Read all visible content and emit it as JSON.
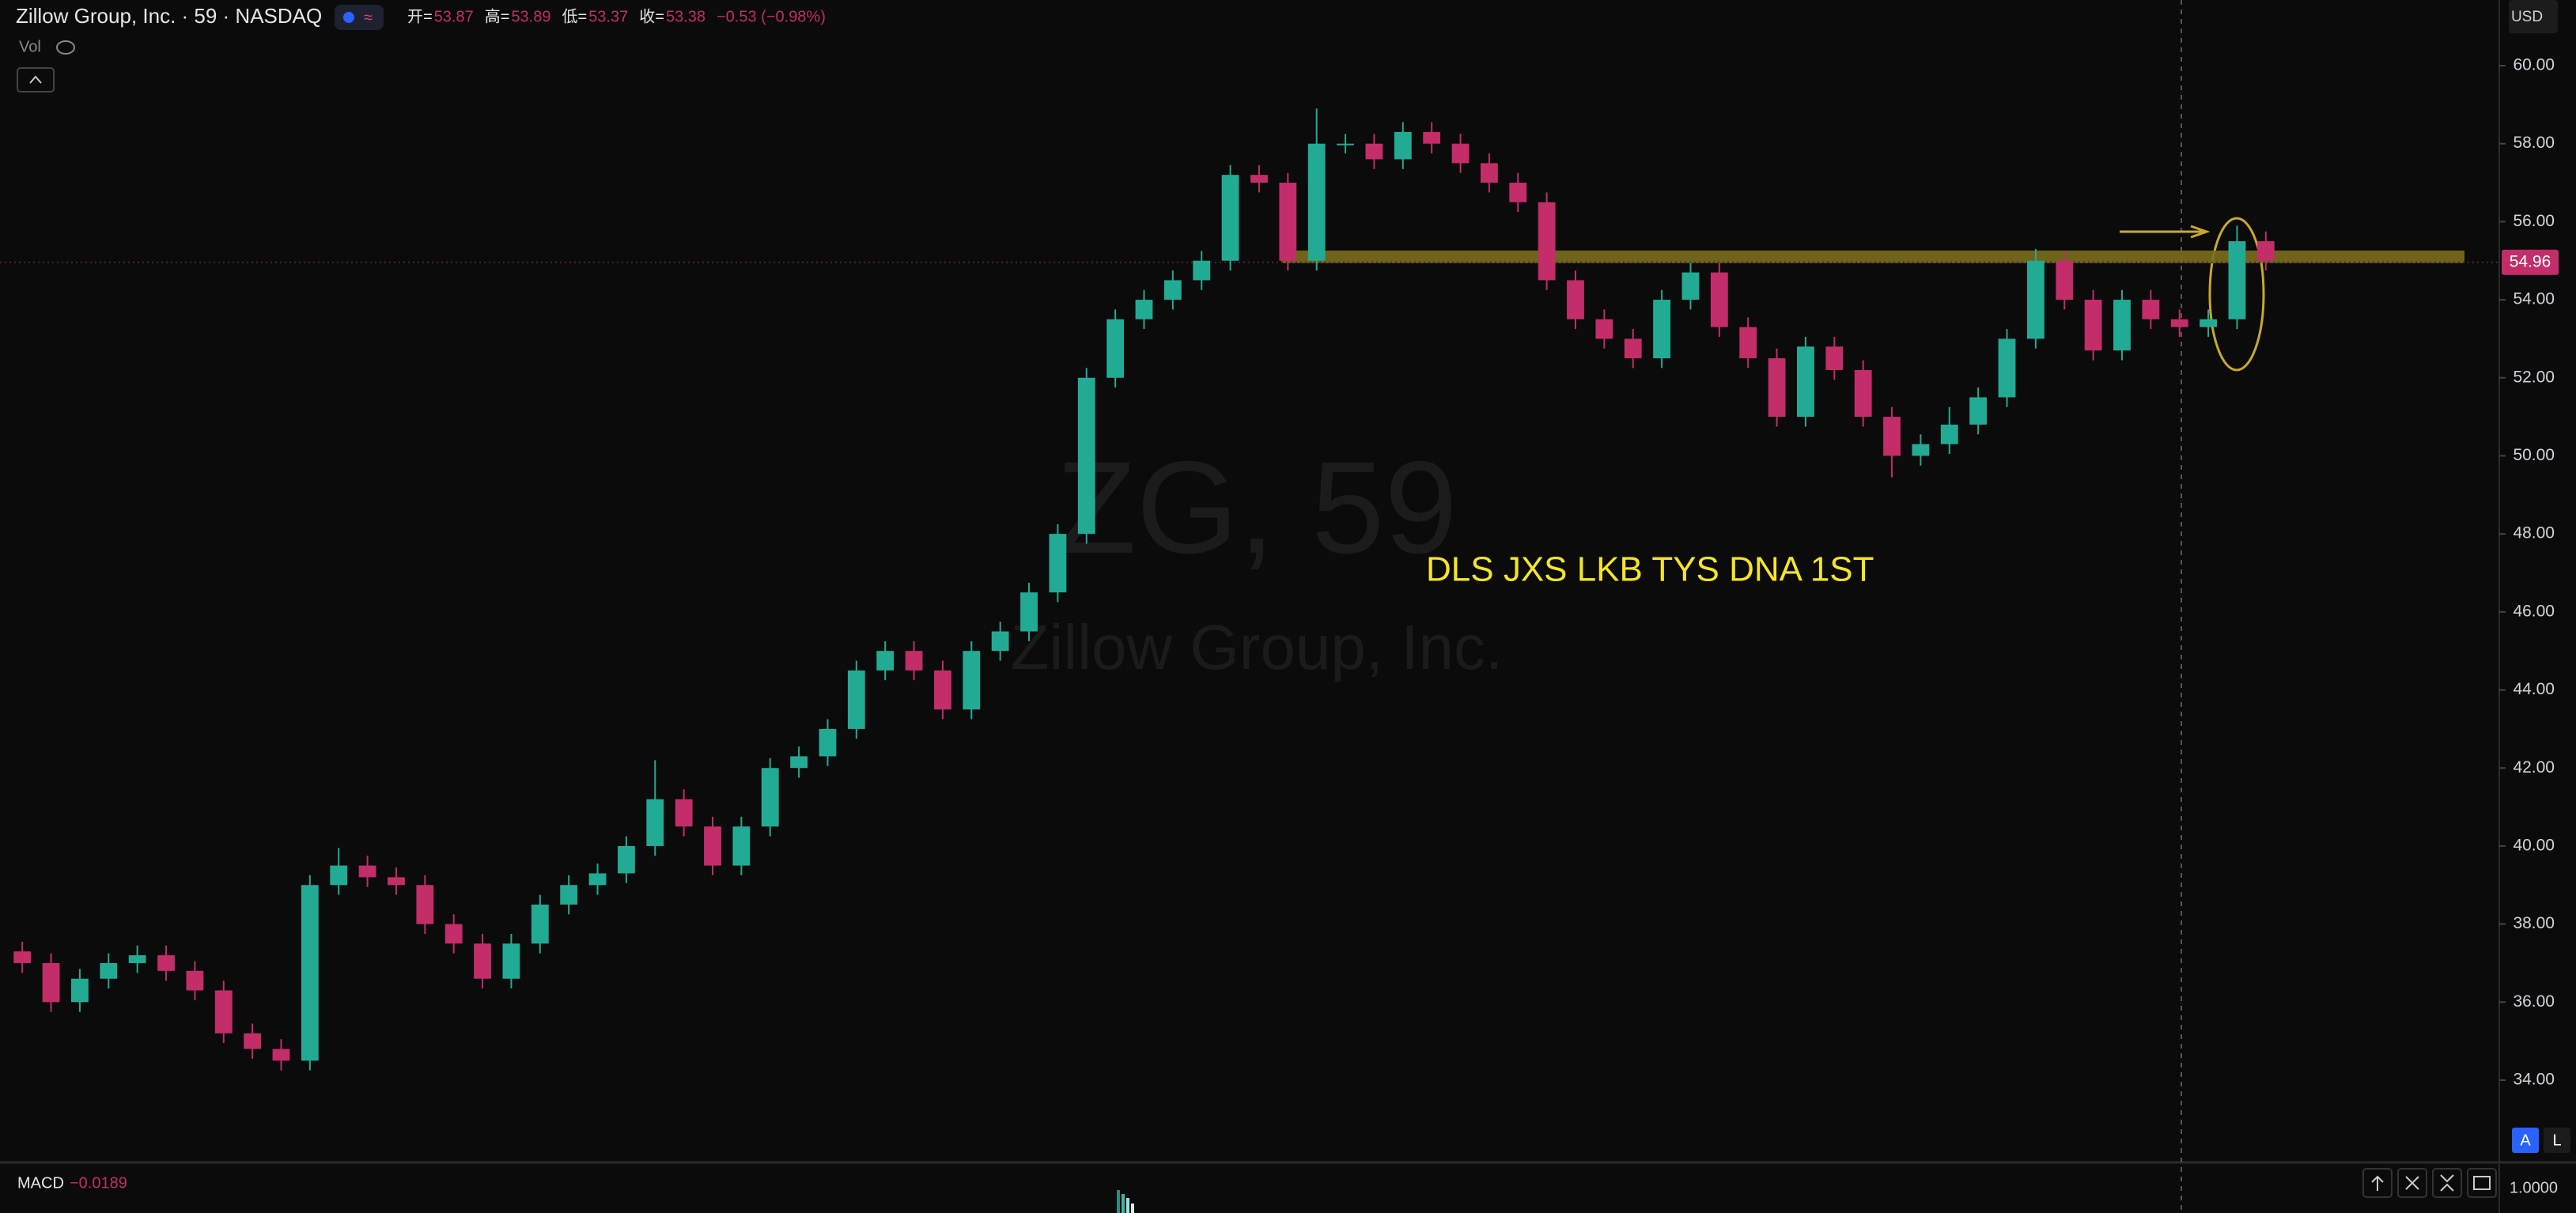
{
  "chart_data": {
    "type": "candlestick",
    "title": "Zillow Group, Inc. · 59 · NASDAQ",
    "quote": {
      "labels": [
        "开=",
        "高=",
        "低=",
        "收="
      ],
      "values": [
        53.87,
        53.89,
        53.37,
        53.38
      ],
      "change": {
        "value": -0.53,
        "label": "−0.53 (−0.98%)"
      }
    },
    "volume_label": "Vol",
    "watermark": {
      "symbol": "ZG, 59",
      "name": "Zillow Group, Inc."
    },
    "annotation": "DLS JXS LKB TYS DNA 1ST",
    "currency": "USD",
    "last_price": 54.96,
    "levels": [
      55.1
    ],
    "up_color": "#22ab94",
    "down_color": "#c22d6a",
    "level_color": "#7a6e1c",
    "ohlc": [
      [
        37.3,
        37.55,
        36.75,
        37.0
      ],
      [
        37.0,
        37.25,
        35.75,
        36.0
      ],
      [
        36.0,
        36.85,
        35.75,
        36.6
      ],
      [
        36.6,
        37.25,
        36.35,
        37.0
      ],
      [
        37.0,
        37.45,
        36.75,
        37.2
      ],
      [
        37.2,
        37.45,
        36.55,
        36.8
      ],
      [
        36.8,
        37.05,
        36.05,
        36.3
      ],
      [
        36.3,
        36.55,
        34.95,
        35.2
      ],
      [
        35.2,
        35.45,
        34.55,
        34.8
      ],
      [
        34.8,
        35.05,
        34.25,
        34.5
      ],
      [
        34.5,
        39.25,
        34.25,
        39.0
      ],
      [
        39.0,
        39.95,
        38.75,
        39.5
      ],
      [
        39.5,
        39.75,
        38.95,
        39.2
      ],
      [
        39.2,
        39.45,
        38.75,
        39.0
      ],
      [
        39.0,
        39.25,
        37.75,
        38.0
      ],
      [
        38.0,
        38.25,
        37.25,
        37.5
      ],
      [
        37.5,
        37.75,
        36.35,
        36.6
      ],
      [
        36.6,
        37.75,
        36.35,
        37.5
      ],
      [
        37.5,
        38.75,
        37.25,
        38.5
      ],
      [
        38.5,
        39.25,
        38.25,
        39.0
      ],
      [
        39.0,
        39.55,
        38.75,
        39.3
      ],
      [
        39.3,
        40.25,
        39.05,
        40.0
      ],
      [
        40.0,
        42.2,
        39.75,
        41.2
      ],
      [
        41.2,
        41.45,
        40.25,
        40.5
      ],
      [
        40.5,
        40.75,
        39.25,
        39.5
      ],
      [
        39.5,
        40.75,
        39.25,
        40.5
      ],
      [
        40.5,
        42.25,
        40.25,
        42.0
      ],
      [
        42.0,
        42.55,
        41.75,
        42.3
      ],
      [
        42.3,
        43.25,
        42.05,
        43.0
      ],
      [
        43.0,
        44.75,
        42.75,
        44.5
      ],
      [
        44.5,
        45.25,
        44.25,
        45.0
      ],
      [
        45.0,
        45.25,
        44.25,
        44.5
      ],
      [
        44.5,
        44.75,
        43.25,
        43.5
      ],
      [
        43.5,
        45.25,
        43.25,
        45.0
      ],
      [
        45.0,
        45.75,
        44.75,
        45.5
      ],
      [
        45.5,
        46.75,
        45.25,
        46.5
      ],
      [
        46.5,
        48.25,
        46.25,
        48.0
      ],
      [
        48.0,
        52.25,
        47.75,
        52.0
      ],
      [
        52.0,
        53.75,
        51.75,
        53.5
      ],
      [
        53.5,
        54.25,
        53.25,
        54.0
      ],
      [
        54.0,
        54.75,
        53.75,
        54.5
      ],
      [
        54.5,
        55.25,
        54.25,
        55.0
      ],
      [
        55.0,
        57.45,
        54.75,
        57.2
      ],
      [
        57.2,
        57.45,
        56.75,
        57.0
      ],
      [
        57.0,
        57.25,
        54.75,
        55.0
      ],
      [
        55.0,
        58.9,
        54.75,
        58.0
      ],
      [
        58.0,
        58.25,
        57.75,
        58.0
      ],
      [
        58.0,
        58.25,
        57.35,
        57.6
      ],
      [
        57.6,
        58.55,
        57.35,
        58.3
      ],
      [
        58.3,
        58.55,
        57.75,
        58.0
      ],
      [
        58.0,
        58.25,
        57.25,
        57.5
      ],
      [
        57.5,
        57.75,
        56.75,
        57.0
      ],
      [
        57.0,
        57.25,
        56.25,
        56.5
      ],
      [
        56.5,
        56.75,
        54.25,
        54.5
      ],
      [
        54.5,
        54.75,
        53.25,
        53.5
      ],
      [
        53.5,
        53.75,
        52.75,
        53.0
      ],
      [
        53.0,
        53.25,
        52.25,
        52.5
      ],
      [
        52.5,
        54.25,
        52.25,
        54.0
      ],
      [
        54.0,
        54.95,
        53.75,
        54.7
      ],
      [
        54.7,
        54.95,
        53.05,
        53.3
      ],
      [
        53.3,
        53.55,
        52.25,
        52.5
      ],
      [
        52.5,
        52.75,
        50.75,
        51.0
      ],
      [
        51.0,
        53.05,
        50.75,
        52.8
      ],
      [
        52.8,
        53.05,
        51.95,
        52.2
      ],
      [
        52.2,
        52.45,
        50.75,
        51.0
      ],
      [
        51.0,
        51.25,
        49.45,
        50.0
      ],
      [
        50.0,
        50.55,
        49.75,
        50.3
      ],
      [
        50.3,
        51.25,
        50.05,
        50.8
      ],
      [
        50.8,
        51.75,
        50.55,
        51.5
      ],
      [
        51.5,
        53.25,
        51.25,
        53.0
      ],
      [
        53.0,
        55.3,
        52.75,
        55.0
      ],
      [
        55.0,
        55.25,
        53.75,
        54.0
      ],
      [
        54.0,
        54.25,
        52.45,
        52.7
      ],
      [
        52.7,
        54.25,
        52.45,
        54.0
      ],
      [
        54.0,
        54.25,
        53.25,
        53.5
      ],
      [
        53.5,
        53.75,
        53.05,
        53.3
      ],
      [
        53.3,
        53.75,
        53.05,
        53.5
      ],
      [
        53.5,
        55.9,
        53.25,
        55.5
      ],
      [
        55.5,
        55.75,
        54.75,
        55.0
      ]
    ],
    "ylim": [
      61.4,
      32.6
    ],
    "yticks": [
      {
        "value": 60,
        "label": "60.00"
      },
      {
        "value": 58,
        "label": "58.00"
      },
      {
        "value": 56,
        "label": "56.00"
      },
      {
        "value": 54,
        "label": "54.00"
      },
      {
        "value": 52,
        "label": "52.00"
      },
      {
        "value": 50,
        "label": "50.00"
      },
      {
        "value": 48,
        "label": "48.00"
      },
      {
        "value": 46,
        "label": "46.00"
      },
      {
        "value": 44,
        "label": "44.00"
      },
      {
        "value": 42,
        "label": "42.00"
      },
      {
        "value": 40,
        "label": "40.00"
      },
      {
        "value": 38,
        "label": "38.00"
      },
      {
        "value": 36,
        "label": "36.00"
      },
      {
        "value": 34,
        "label": "34.00"
      }
    ],
    "macd": {
      "label": "MACD",
      "value": {
        "value": -0.0189,
        "label": "−0.0189"
      },
      "scale_label": "1.0000"
    },
    "scale_buttons": [
      "A",
      "L"
    ]
  }
}
